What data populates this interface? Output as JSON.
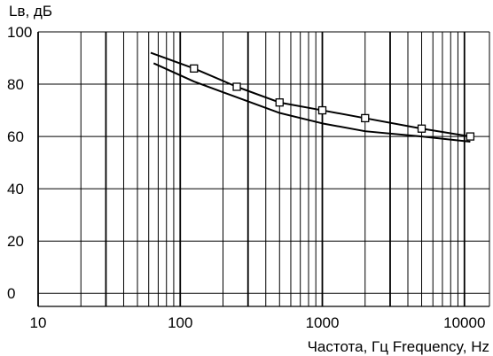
{
  "chart_data": {
    "type": "line",
    "title": "",
    "ylabel": "Lв, дБ",
    "xlabel": "Частота, Гц  Frequency, Hz",
    "xscale": "log",
    "xlim": [
      10,
      15000
    ],
    "ylim": [
      -5,
      100
    ],
    "x_ticks": [
      10,
      100,
      1000,
      10000
    ],
    "x_tick_labels": [
      "10",
      "100",
      "1000",
      "10000"
    ],
    "y_ticks": [
      0,
      20,
      40,
      60,
      80,
      100
    ],
    "y_tick_labels": [
      "0",
      "20",
      "40",
      "60",
      "80",
      "100"
    ],
    "grid": true,
    "series": [
      {
        "marker": "square",
        "x": [
          62,
          125,
          250,
          500,
          1000,
          2000,
          5000,
          11000
        ],
        "y": [
          92,
          86,
          79,
          73,
          70,
          67,
          63,
          60
        ]
      },
      {
        "marker": "none",
        "x": [
          65,
          125,
          250,
          500,
          1000,
          2000,
          5000,
          11000
        ],
        "y": [
          88,
          81,
          75,
          69,
          65,
          62,
          60,
          58
        ]
      }
    ]
  }
}
